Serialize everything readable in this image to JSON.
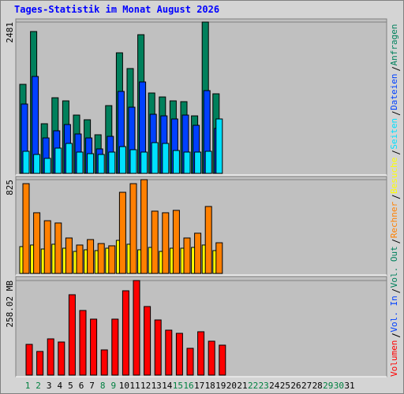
{
  "title": "Tages-Statistik im Monat August 2026",
  "chart_data": [
    {
      "type": "bar",
      "ylim": [
        0,
        2481
      ],
      "yticks": [
        2481
      ],
      "series": [
        {
          "name": "Seiten",
          "color": "#00e0ff",
          "values": [
            362,
            310,
            246,
            414,
            491,
            349,
            323,
            310,
            349,
            439,
            388,
            349,
            504,
            491,
            375,
            349,
            349,
            362,
            892,
            null,
            null,
            null,
            null,
            null,
            null,
            null,
            null,
            null,
            null,
            null,
            null
          ]
        },
        {
          "name": "Dateien",
          "color": "#0040ff",
          "values": [
            1137,
            1589,
            581,
            698,
            801,
            646,
            581,
            401,
            607,
            1344,
            1085,
            1499,
            969,
            943,
            892,
            956,
            788,
            1357,
            737,
            null,
            null,
            null,
            null,
            null,
            null,
            null,
            null,
            null,
            null,
            null,
            null
          ]
        },
        {
          "name": "Anfragen",
          "color": "#00805c",
          "values": [
            1460,
            2326,
            814,
            1240,
            1189,
            956,
            879,
            633,
            1111,
            1977,
            1719,
            2274,
            1318,
            1253,
            1189,
            1176,
            943,
            2481,
            1305,
            null,
            null,
            null,
            null,
            null,
            null,
            null,
            null,
            null,
            null,
            null,
            null
          ]
        }
      ]
    },
    {
      "type": "bar",
      "ylim": [
        0,
        825
      ],
      "yticks": [
        825
      ],
      "series": [
        {
          "name": "Rechner",
          "color": "#ff8000",
          "values": [
            790,
            534,
            464,
            444,
            312,
            250,
            298,
            263,
            243,
            714,
            790,
            825,
            548,
            534,
            555,
            312,
            354,
            589,
            270,
            null,
            null,
            null,
            null,
            null,
            null,
            null,
            null,
            null,
            null,
            null,
            null
          ]
        },
        {
          "name": "Besuche",
          "color": "#ffff00",
          "values": [
            236,
            250,
            215,
            257,
            222,
            194,
            208,
            201,
            222,
            291,
            257,
            208,
            229,
            194,
            222,
            222,
            229,
            250,
            201,
            null,
            null,
            null,
            null,
            null,
            null,
            null,
            null,
            null,
            null,
            null,
            null
          ]
        }
      ]
    },
    {
      "type": "bar",
      "ylim": [
        0,
        258.02
      ],
      "yticks": [
        {
          "value": 258.02,
          "label": "258.02 MB"
        }
      ],
      "categories": [
        "1",
        "2",
        "3",
        "4",
        "5",
        "6",
        "7",
        "8",
        "9",
        "10",
        "11",
        "12",
        "13",
        "14",
        "15",
        "16",
        "17",
        "18",
        "19",
        "20",
        "21",
        "22",
        "23",
        "24",
        "25",
        "26",
        "27",
        "28",
        "29",
        "30",
        "31"
      ],
      "category_colors": [
        "#008040",
        "#008040",
        "#000000",
        "#000000",
        "#000000",
        "#000000",
        "#000000",
        "#008040",
        "#008040",
        "#000000",
        "#000000",
        "#000000",
        "#000000",
        "#000000",
        "#008040",
        "#008040",
        "#000000",
        "#000000",
        "#000000",
        "#000000",
        "#000000",
        "#008040",
        "#008040",
        "#000000",
        "#000000",
        "#000000",
        "#000000",
        "#000000",
        "#008040",
        "#008040",
        "#000000"
      ],
      "series": [
        {
          "name": "Volumen",
          "color": "#ff0000",
          "values": [
            83.86,
            64.5,
            98.9,
            90.3,
            219.3,
            176.3,
            152.7,
            68.8,
            152.7,
            230.1,
            258.02,
            187.1,
            150.5,
            122.6,
            114.0,
            73.1,
            118.3,
            92.5,
            81.7,
            null,
            null,
            null,
            null,
            null,
            null,
            null,
            null,
            null,
            null,
            null,
            null
          ]
        },
        {
          "name": "Vol. In",
          "color": "#0040ff",
          "values": [
            null,
            null,
            null,
            null,
            null,
            null,
            null,
            null,
            null,
            null,
            null,
            null,
            null,
            null,
            null,
            null,
            null,
            null,
            null,
            null,
            null,
            null,
            null,
            null,
            null,
            null,
            null,
            null,
            null,
            null,
            null
          ]
        },
        {
          "name": "Vol. Out",
          "color": "#00805c",
          "values": [
            null,
            null,
            null,
            null,
            null,
            null,
            null,
            null,
            null,
            null,
            null,
            null,
            null,
            null,
            null,
            null,
            null,
            null,
            null,
            null,
            null,
            null,
            null,
            null,
            null,
            null,
            null,
            null,
            null,
            null,
            null
          ]
        }
      ]
    }
  ]
}
